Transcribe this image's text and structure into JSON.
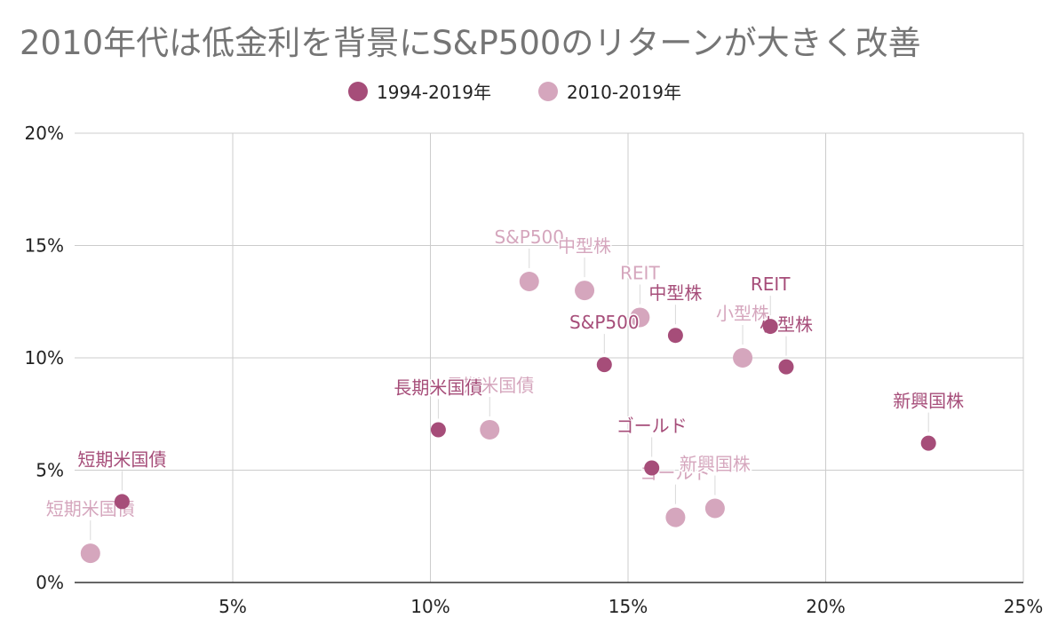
{
  "chart_data": {
    "type": "scatter",
    "title": "2010年代は低金利を背景にS&P500のリターンが大きく改善",
    "xlabel": "",
    "ylabel": "",
    "xlim": [
      1,
      25
    ],
    "ylim": [
      0,
      20
    ],
    "x_ticks": [
      "5%",
      "10%",
      "15%",
      "20%",
      "25%"
    ],
    "x_tick_values": [
      5,
      10,
      15,
      20,
      25
    ],
    "y_ticks": [
      "0%",
      "5%",
      "10%",
      "15%",
      "20%"
    ],
    "y_tick_values": [
      0,
      5,
      10,
      15,
      20
    ],
    "grid": true,
    "legend_position": "top",
    "series": [
      {
        "name": "1994-2019年",
        "color": "#a64d79",
        "points": [
          {
            "label": "短期米国債",
            "x": 2.2,
            "y": 3.6
          },
          {
            "label": "長期米国債",
            "x": 10.2,
            "y": 6.8
          },
          {
            "label": "S&P500",
            "x": 14.4,
            "y": 9.7
          },
          {
            "label": "中型株",
            "x": 16.2,
            "y": 11.0
          },
          {
            "label": "小型株",
            "x": 19.0,
            "y": 9.6
          },
          {
            "label": "REIT",
            "x": 18.6,
            "y": 11.4
          },
          {
            "label": "ゴールド",
            "x": 15.6,
            "y": 5.1
          },
          {
            "label": "新興国株",
            "x": 22.6,
            "y": 6.2
          }
        ]
      },
      {
        "name": "2010-2019年",
        "color": "#d5a6bd",
        "points": [
          {
            "label": "短期米国債",
            "x": 1.4,
            "y": 1.3
          },
          {
            "label": "長期米国債",
            "x": 11.5,
            "y": 6.8
          },
          {
            "label": "S&P500",
            "x": 12.5,
            "y": 13.4
          },
          {
            "label": "中型株",
            "x": 13.9,
            "y": 13.0
          },
          {
            "label": "REIT",
            "x": 15.3,
            "y": 11.8
          },
          {
            "label": "小型株",
            "x": 17.9,
            "y": 10.0
          },
          {
            "label": "ゴールド",
            "x": 16.2,
            "y": 2.9
          },
          {
            "label": "新興国株",
            "x": 17.2,
            "y": 3.3
          }
        ]
      }
    ]
  }
}
